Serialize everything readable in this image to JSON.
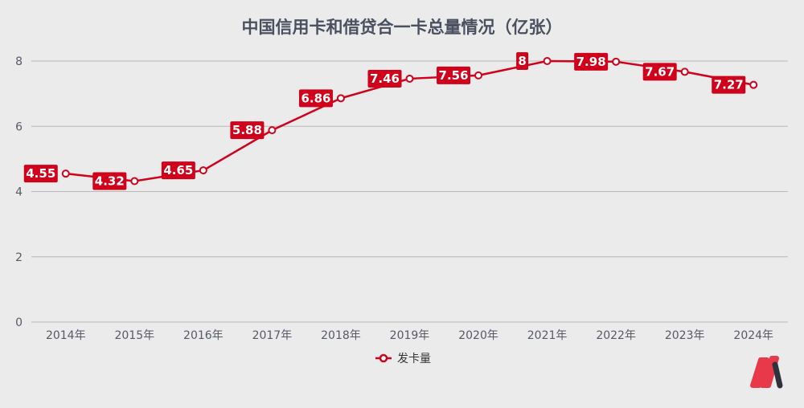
{
  "chart_data": {
    "type": "line",
    "title": "中国信用卡和借贷合一卡总量情况（亿张）",
    "categories": [
      "2014年",
      "2015年",
      "2016年",
      "2017年",
      "2018年",
      "2019年",
      "2020年",
      "2021年",
      "2022年",
      "2023年",
      "2024年"
    ],
    "series": [
      {
        "name": "发卡量",
        "values": [
          4.55,
          4.32,
          4.65,
          5.88,
          6.86,
          7.46,
          7.56,
          8,
          7.98,
          7.67,
          7.27
        ],
        "color": "#d0021b"
      }
    ],
    "ylim": [
      0,
      8
    ],
    "yticks": [
      0,
      2,
      4,
      6,
      8
    ],
    "grid": true,
    "legend": "bottom",
    "data_labels": true
  },
  "colors": {
    "background": "#ebebeb",
    "line": "#d0021b",
    "logo_red": "#e8394a",
    "logo_dark": "#2e323c"
  }
}
